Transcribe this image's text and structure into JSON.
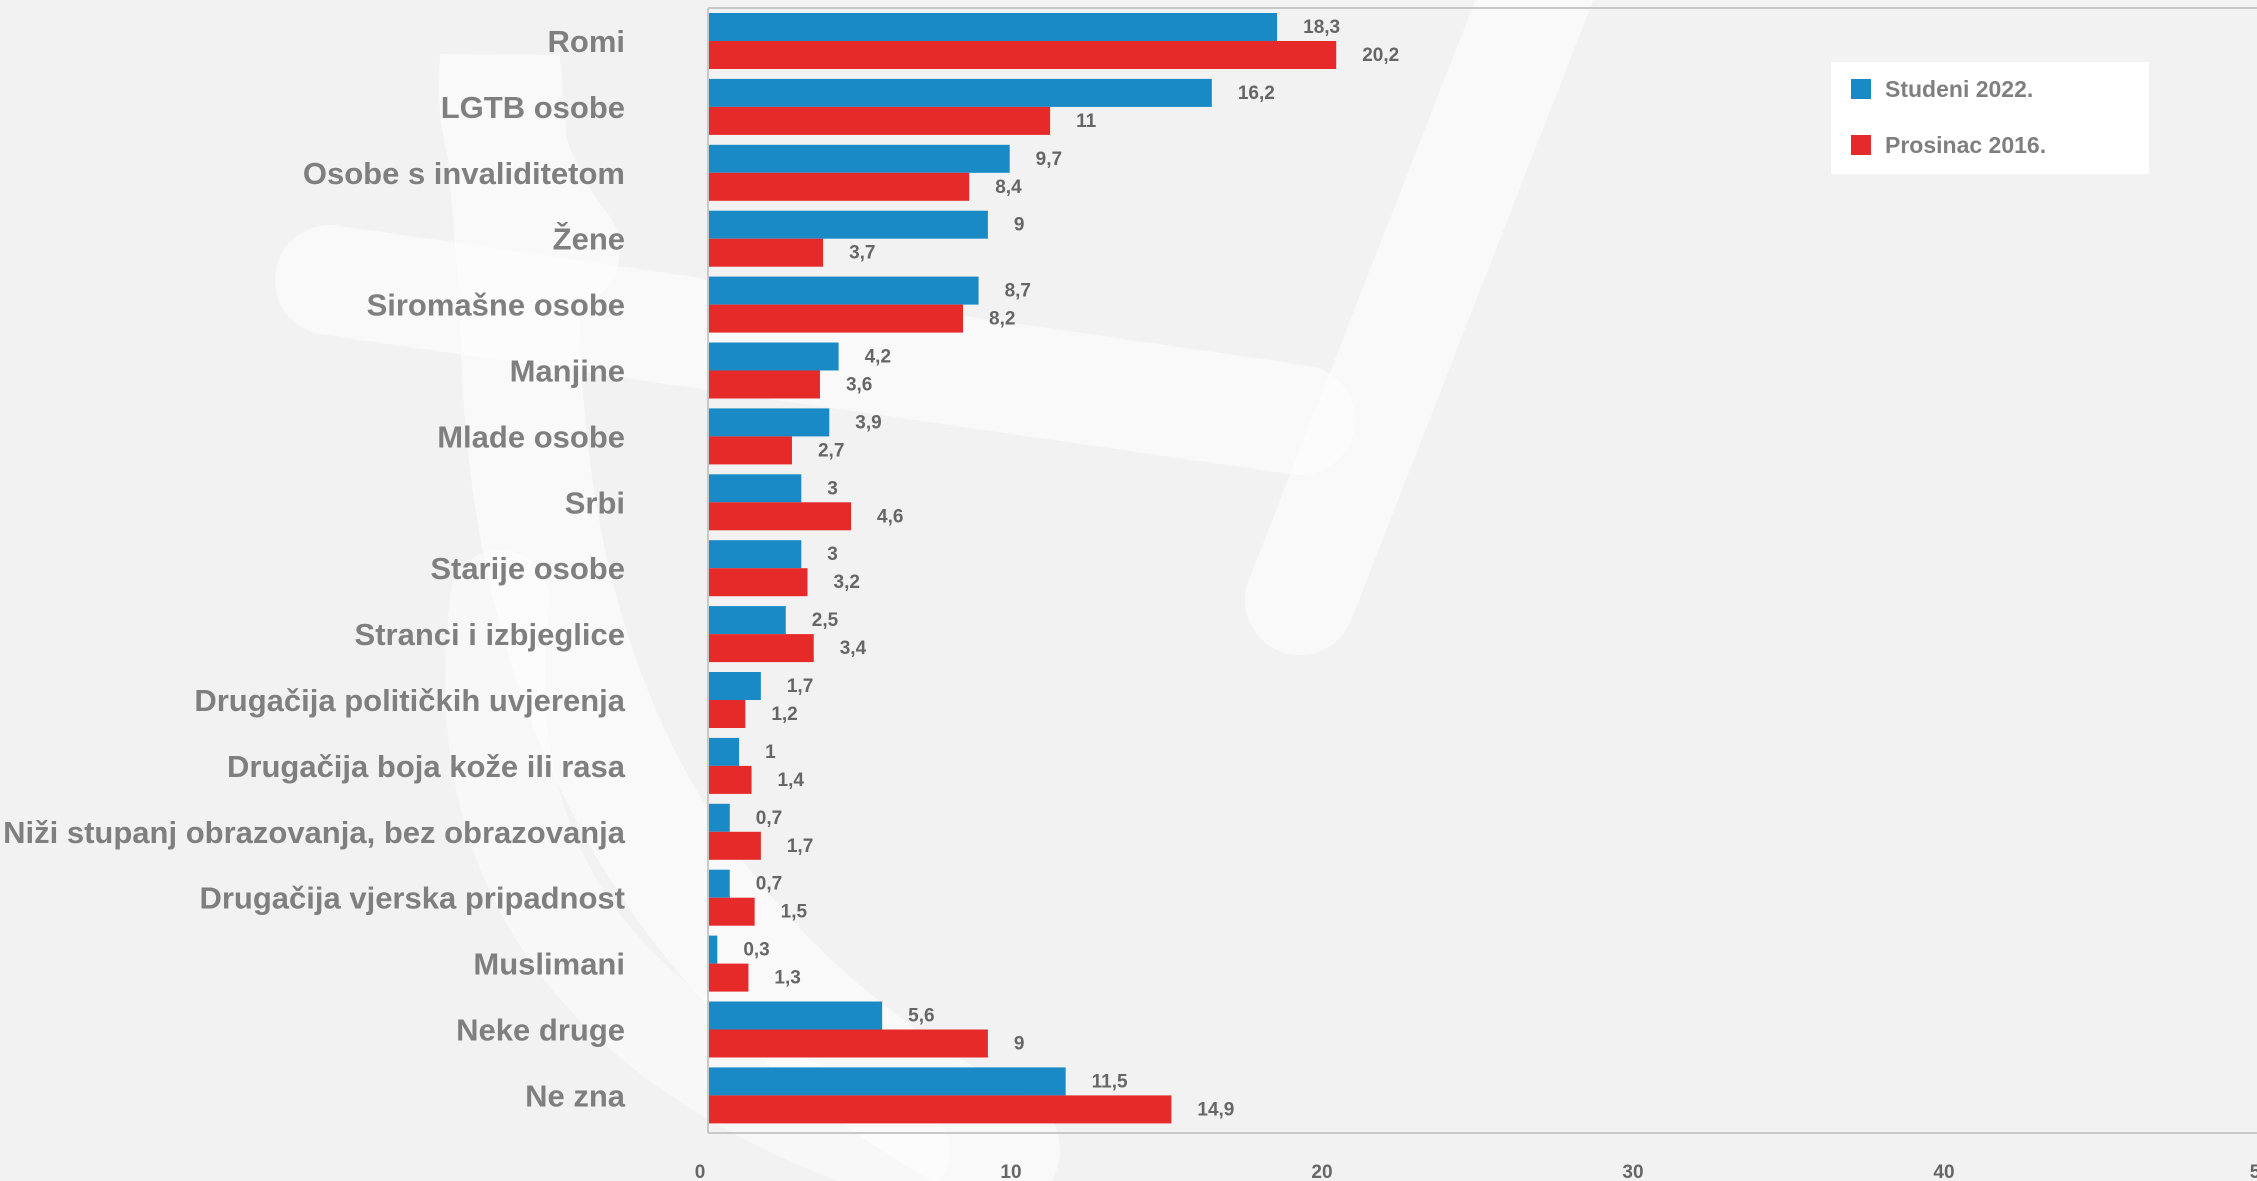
{
  "chart_data": {
    "type": "bar",
    "orientation": "horizontal",
    "categories": [
      "Romi",
      "LGTB osobe",
      "Osobe s invaliditetom",
      "Žene",
      "Siromašne osobe",
      "Manjine",
      "Mlade osobe",
      "Srbi",
      "Starije osobe",
      "Stranci i izbjeglice",
      "Drugačija političkih uvjerenja",
      "Drugačija boja kože ili rasa",
      "Niži stupanj obrazovanja, bez obrazovanja",
      "Drugačija vjerska pripadnost",
      "Muslimani",
      "Neke druge",
      "Ne zna"
    ],
    "series": [
      {
        "name": "Studeni 2022.",
        "color": "#1a8ac6",
        "values": [
          18.3,
          16.2,
          9.7,
          9,
          8.7,
          4.2,
          3.9,
          3,
          3,
          2.5,
          1.7,
          1,
          0.7,
          0.7,
          0.3,
          5.6,
          11.5
        ],
        "labels": [
          "18,3",
          "16,2",
          "9,7",
          "9",
          "8,7",
          "4,2",
          "3,9",
          "3",
          "3",
          "2,5",
          "1,7",
          "1",
          "0,7",
          "0,7",
          "0,3",
          "5,6",
          "11,5"
        ]
      },
      {
        "name": "Prosinac 2016.",
        "color": "#e62a2a",
        "values": [
          20.2,
          11,
          8.4,
          3.7,
          8.2,
          3.6,
          2.7,
          4.6,
          3.2,
          3.4,
          1.2,
          1.4,
          1.7,
          1.5,
          1.3,
          9,
          14.9
        ],
        "labels": [
          "20,2",
          "11",
          "8,4",
          "3,7",
          "8,2",
          "3,6",
          "2,7",
          "4,6",
          "3,2",
          "3,4",
          "1,2",
          "1,4",
          "1,7",
          "1,5",
          "1,3",
          "9",
          "14,9"
        ]
      }
    ],
    "x_ticks": [
      "0",
      "10",
      "20",
      "30",
      "40",
      "5"
    ],
    "xlim": [
      0,
      50
    ],
    "grid": false,
    "legend_position": "top-right"
  }
}
